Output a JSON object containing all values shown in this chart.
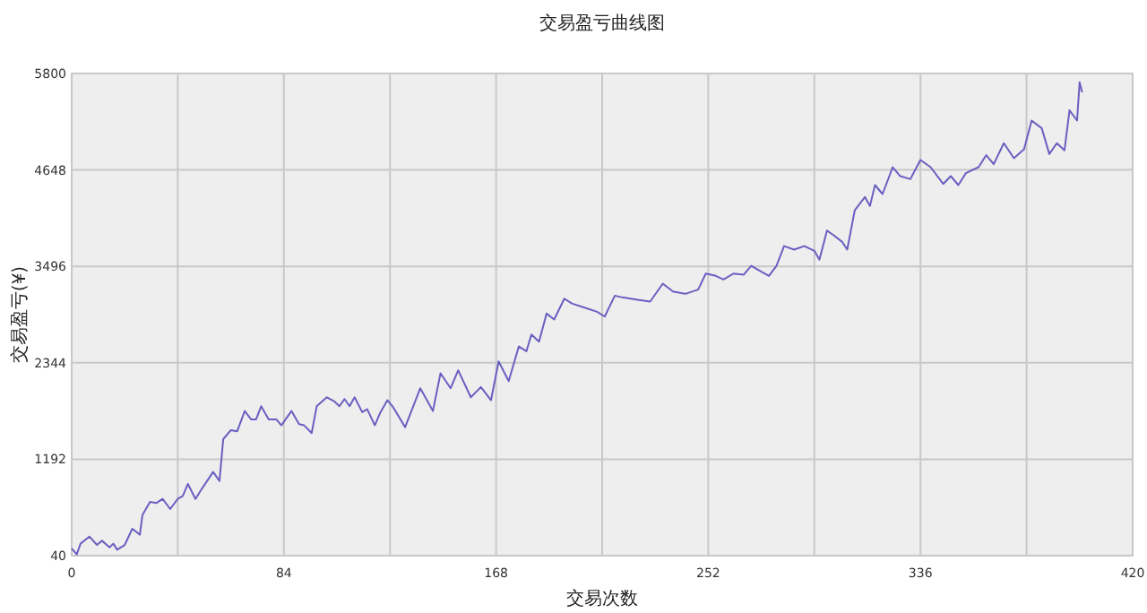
{
  "chart_data": {
    "type": "line",
    "title": "交易盈亏曲线图",
    "xlabel": "交易次数",
    "ylabel": "交易盈亏(¥)",
    "xlim": [
      0,
      420
    ],
    "ylim": [
      40,
      5800
    ],
    "xticks": [
      0,
      {
        "value": 42,
        "label": null
      },
      84,
      {
        "value": 126,
        "label": null
      },
      168,
      {
        "value": 210,
        "label": null
      },
      252,
      {
        "value": 294,
        "label": null
      },
      336,
      {
        "value": 378,
        "label": null
      },
      420
    ],
    "yticks": [
      40,
      1192,
      2344,
      3496,
      4648,
      5800
    ],
    "grid": true,
    "series": [
      {
        "color": "#6a5fc1",
        "x": [
          0,
          2,
          3.5,
          7,
          10,
          12,
          15,
          16.5,
          18,
          21,
          24,
          27,
          28,
          31,
          33.5,
          36,
          39,
          42,
          44,
          46,
          49,
          52,
          56,
          58.5,
          60,
          63,
          65.5,
          68.5,
          71,
          73,
          75,
          78,
          81,
          83,
          87,
          90,
          92,
          95,
          97,
          101,
          104,
          106,
          108,
          110,
          112,
          115,
          117,
          120,
          122,
          125,
          127,
          132,
          138,
          143,
          146,
          150,
          153,
          158,
          162,
          166,
          169,
          173,
          177,
          180,
          182,
          185,
          188,
          191,
          195,
          198,
          203,
          208,
          211,
          215,
          218,
          224,
          229,
          234,
          238,
          243,
          248,
          251,
          255,
          258,
          262,
          266,
          269,
          273,
          276,
          279,
          282,
          286,
          290,
          294,
          296,
          299,
          302,
          305,
          307,
          310,
          314,
          316,
          318,
          321,
          325,
          328,
          332,
          336,
          340,
          345,
          348,
          351,
          354,
          359,
          362,
          365,
          369,
          373,
          377,
          380,
          384,
          387,
          390,
          393,
          395,
          398,
          399,
          400
        ],
        "values": [
          126,
          54,
          183,
          268,
          168,
          218,
          140,
          183,
          111,
          168,
          361,
          290,
          525,
          683,
          668,
          718,
          597,
          718,
          754,
          897,
          718,
          861,
          1040,
          933,
          1432,
          1539,
          1525,
          1768,
          1668,
          1668,
          1825,
          1668,
          1668,
          1597,
          1768,
          1611,
          1597,
          1504,
          1825,
          1932,
          1882,
          1825,
          1911,
          1825,
          1932,
          1754,
          1789,
          1597,
          1739,
          1897,
          1825,
          1575,
          2040,
          1768,
          2218,
          2040,
          2254,
          1932,
          2054,
          1897,
          2361,
          2125,
          2539,
          2482,
          2682,
          2596,
          2932,
          2861,
          3110,
          3053,
          3003,
          2953,
          2896,
          3146,
          3125,
          3096,
          3075,
          3289,
          3196,
          3168,
          3218,
          3410,
          3382,
          3339,
          3410,
          3396,
          3503,
          3432,
          3382,
          3503,
          3738,
          3696,
          3738,
          3682,
          3575,
          3924,
          3860,
          3789,
          3696,
          4167,
          4324,
          4217,
          4467,
          4360,
          4681,
          4574,
          4538,
          4767,
          4681,
          4481,
          4574,
          4467,
          4610,
          4681,
          4824,
          4717,
          4967,
          4788,
          4895,
          5238,
          5146,
          4838,
          4967,
          4881,
          5360,
          5238,
          5695,
          5574
        ]
      }
    ]
  }
}
